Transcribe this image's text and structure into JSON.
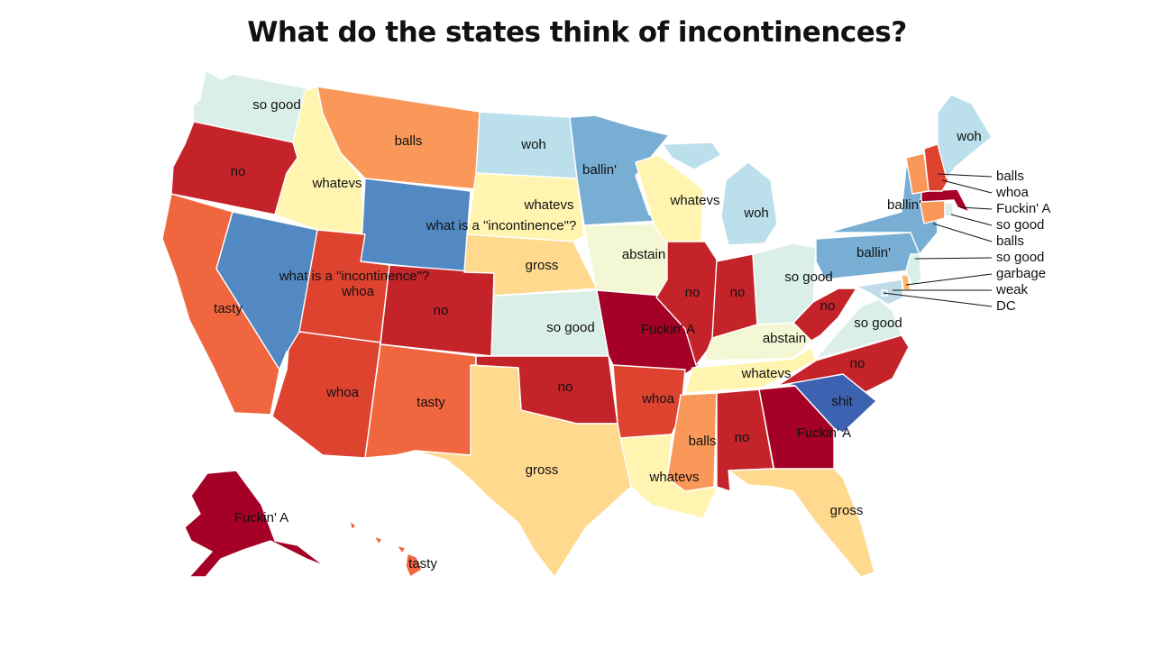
{
  "title": "What do the states think of incontinences?",
  "palette": {
    "Fuckin' A": "#a50026",
    "no": "#c4232a",
    "whoa": "#de4330",
    "tasty": "#f0663e",
    "balls": "#f99858",
    "garbage": "#fdb86a",
    "gross": "#fed98e",
    "whatevs": "#fff5b0",
    "abstain": "#f4f7d4",
    "so good": "#dbefe9",
    "woh": "#bbe0ec",
    "ballin'": "#78aed4",
    "what is a \"incontinence\"?": "#5289c2",
    "shit": "#3d62b1",
    "weak": "#bfdce8",
    "DC": "#bfdce8"
  },
  "states": [
    {
      "id": "WA",
      "value": "so good"
    },
    {
      "id": "OR",
      "value": "no"
    },
    {
      "id": "CA",
      "value": "tasty"
    },
    {
      "id": "NV",
      "value": "what is a \"incontinence\"?"
    },
    {
      "id": "ID",
      "value": "whatevs"
    },
    {
      "id": "MT",
      "value": "balls"
    },
    {
      "id": "WY",
      "value": "what is a \"incontinence\"?"
    },
    {
      "id": "UT",
      "value": "whoa"
    },
    {
      "id": "AZ",
      "value": "whoa"
    },
    {
      "id": "CO",
      "value": "no"
    },
    {
      "id": "NM",
      "value": "tasty"
    },
    {
      "id": "ND",
      "value": "woh"
    },
    {
      "id": "SD",
      "value": "whatevs"
    },
    {
      "id": "NE",
      "value": "gross"
    },
    {
      "id": "KS",
      "value": "so good"
    },
    {
      "id": "OK",
      "value": "no"
    },
    {
      "id": "TX",
      "value": "gross"
    },
    {
      "id": "MN",
      "value": "ballin'"
    },
    {
      "id": "IA",
      "value": "abstain"
    },
    {
      "id": "MO",
      "value": "Fuckin' A"
    },
    {
      "id": "AR",
      "value": "whoa"
    },
    {
      "id": "LA",
      "value": "whatevs"
    },
    {
      "id": "WI",
      "value": "whatevs"
    },
    {
      "id": "IL",
      "value": "no"
    },
    {
      "id": "MI",
      "value": "woh"
    },
    {
      "id": "IN",
      "value": "no"
    },
    {
      "id": "OH",
      "value": "so good"
    },
    {
      "id": "KY",
      "value": "abstain"
    },
    {
      "id": "TN",
      "value": "whatevs"
    },
    {
      "id": "MS",
      "value": "balls"
    },
    {
      "id": "AL",
      "value": "no"
    },
    {
      "id": "GA",
      "value": "Fuckin' A"
    },
    {
      "id": "FL",
      "value": "gross"
    },
    {
      "id": "SC",
      "value": "shit"
    },
    {
      "id": "NC",
      "value": "no"
    },
    {
      "id": "VA",
      "value": "so good"
    },
    {
      "id": "WV",
      "value": "no"
    },
    {
      "id": "PA",
      "value": "ballin'"
    },
    {
      "id": "NY",
      "value": "ballin'"
    },
    {
      "id": "NJ",
      "value": "so good"
    },
    {
      "id": "DE",
      "value": "garbage"
    },
    {
      "id": "MD",
      "value": "weak"
    },
    {
      "id": "DC",
      "value": "DC"
    },
    {
      "id": "CT",
      "value": "balls"
    },
    {
      "id": "RI",
      "value": "so good"
    },
    {
      "id": "MA",
      "value": "Fuckin' A"
    },
    {
      "id": "VT",
      "value": "balls"
    },
    {
      "id": "NH",
      "value": "whoa"
    },
    {
      "id": "ME",
      "value": "woh"
    },
    {
      "id": "AK",
      "value": "Fuckin' A"
    },
    {
      "id": "HI",
      "value": "tasty"
    }
  ],
  "callouts": [
    "balls",
    "whoa",
    "Fuckin' A",
    "so good",
    "balls",
    "so good",
    "garbage",
    "weak",
    "DC"
  ]
}
